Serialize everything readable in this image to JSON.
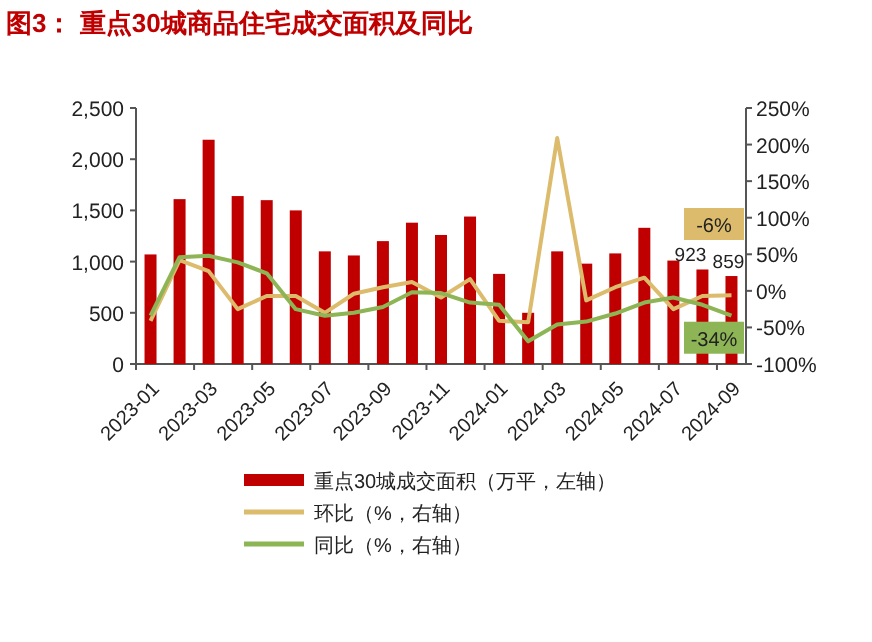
{
  "chart_data": {
    "type": "bar",
    "title": "图3：  重点30城商品住宅成交面积及同比",
    "categories": [
      "2023-01",
      null,
      "2023-03",
      null,
      "2023-05",
      null,
      "2023-07",
      null,
      "2023-09",
      null,
      "2023-11",
      null,
      "2024-01",
      null,
      "2024-03",
      null,
      "2024-05",
      null,
      "2024-07",
      null,
      "2024-09"
    ],
    "series": [
      {
        "name": "重点30城成交面积（万平，左轴）",
        "color": "#c00000",
        "values": [
          1070,
          1610,
          2190,
          1640,
          1600,
          1500,
          1100,
          1060,
          1200,
          1380,
          1260,
          1440,
          880,
          500,
          1100,
          980,
          1080,
          1330,
          1010,
          923,
          859
        ],
        "value_labels": [
          null,
          null,
          null,
          null,
          null,
          null,
          null,
          null,
          null,
          null,
          null,
          null,
          null,
          null,
          null,
          null,
          null,
          null,
          null,
          "923",
          "859"
        ]
      },
      {
        "name": "环比（%，右轴）",
        "type": "line",
        "axis": "y2",
        "color": "#dcbc6c",
        "values": [
          -41,
          42,
          27,
          -25,
          -7,
          -7,
          -30,
          -4,
          5,
          12,
          -9,
          16,
          -41,
          -43,
          209,
          -13,
          5,
          18,
          -25,
          -7,
          -6
        ],
        "value_labels": [
          null,
          null,
          null,
          null,
          null,
          null,
          null,
          null,
          null,
          null,
          null,
          null,
          null,
          null,
          null,
          null,
          null,
          null,
          null,
          null,
          "-6%"
        ]
      },
      {
        "name": "同比（%，右轴）",
        "type": "line",
        "axis": "y2",
        "color": "#8db555",
        "values": [
          -34,
          46,
          48,
          39,
          24,
          -25,
          -34,
          -30,
          -22,
          -2,
          -3,
          -16,
          -19,
          -69,
          -46,
          -42,
          -31,
          -16,
          -9,
          -19,
          -34
        ],
        "value_labels": [
          null,
          null,
          null,
          null,
          null,
          null,
          null,
          null,
          null,
          null,
          null,
          null,
          null,
          null,
          null,
          null,
          null,
          null,
          null,
          null,
          "-34%"
        ]
      }
    ],
    "ylim": [
      0,
      2500
    ],
    "yticks": [
      0,
      {
        "value": 500,
        "label": "500"
      },
      {
        "value": 1000,
        "label": "1,000"
      },
      {
        "value": 1500,
        "label": "1,500"
      },
      {
        "value": 2000,
        "label": "2,000"
      },
      {
        "value": 2500,
        "label": "2,500"
      }
    ],
    "y2lim": [
      -100,
      250
    ],
    "y2ticks": [
      {
        "value": -100,
        "label": "-100%"
      },
      {
        "value": -50,
        "label": "-50%"
      },
      {
        "value": 0,
        "label": "0%"
      },
      {
        "value": 50,
        "label": "50%"
      },
      {
        "value": 100,
        "label": "100%"
      },
      {
        "value": 150,
        "label": "150%"
      },
      {
        "value": 200,
        "label": "200%"
      },
      {
        "value": 250,
        "label": "250%"
      }
    ],
    "grid": false,
    "legend": "bottom"
  }
}
